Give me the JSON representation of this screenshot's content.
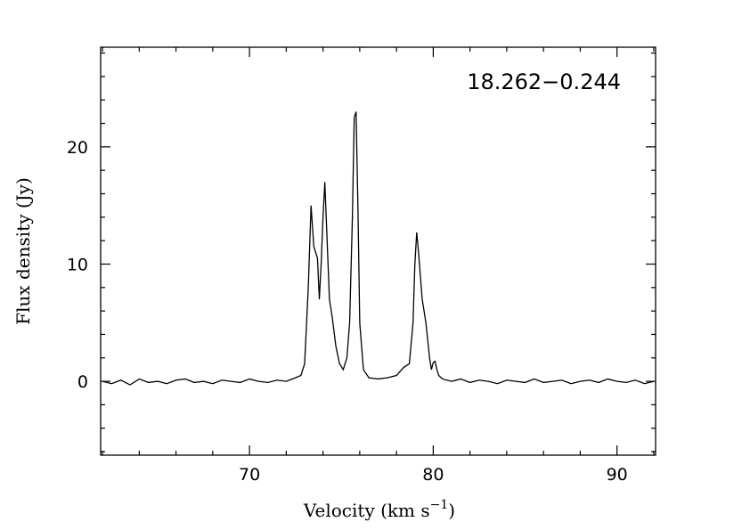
{
  "chart_data": {
    "type": "line",
    "title": "18.262−0.244",
    "xlabel": "Velocity (km s",
    "xlabel_exp": "−1",
    "xlabel_close": ")",
    "ylabel": "Flux density (Jy)",
    "xlim": [
      61.9,
      92.1
    ],
    "ylim": [
      -6.3,
      28.5
    ],
    "x_ticks": [
      70,
      80,
      90
    ],
    "x_tick_labels": [
      "70",
      "80",
      "90"
    ],
    "y_ticks": [
      0,
      10,
      20
    ],
    "y_tick_labels": [
      "0",
      "10",
      "20"
    ],
    "x_minor_step": 2,
    "y_minor_step": 2,
    "colors": {
      "line": "#000000",
      "frame": "#000000",
      "background": "#ffffff"
    },
    "series": [
      {
        "x": [
          62.0,
          62.5,
          63.0,
          63.5,
          64.0,
          64.5,
          65.0,
          65.5,
          66.0,
          66.5,
          67.0,
          67.5,
          68.0,
          68.5,
          69.0,
          69.5,
          70.0,
          70.5,
          71.0,
          71.5,
          72.0,
          72.5,
          72.8,
          73.0,
          73.2,
          73.35,
          73.5,
          73.6,
          73.7,
          73.8,
          73.9,
          74.0,
          74.1,
          74.2,
          74.35,
          74.5,
          74.7,
          74.9,
          75.1,
          75.3,
          75.45,
          75.6,
          75.7,
          75.8,
          75.9,
          76.0,
          76.2,
          76.5,
          77.0,
          77.5,
          78.0,
          78.4,
          78.7,
          78.9,
          79.0,
          79.1,
          79.2,
          79.4,
          79.6,
          79.8,
          79.9,
          80.0,
          80.1,
          80.2,
          80.3,
          80.5,
          81.0,
          81.5,
          82.0,
          82.5,
          83.0,
          83.5,
          84.0,
          84.5,
          85.0,
          85.5,
          86.0,
          86.5,
          87.0,
          87.5,
          88.0,
          88.5,
          89.0,
          89.5,
          90.0,
          90.5,
          91.0,
          91.5,
          92.0
        ],
        "y": [
          0.0,
          -0.2,
          0.1,
          -0.3,
          0.2,
          -0.1,
          0.0,
          -0.2,
          0.1,
          0.2,
          -0.1,
          0.0,
          -0.2,
          0.1,
          0.0,
          -0.1,
          0.2,
          0.0,
          -0.1,
          0.1,
          0.0,
          0.3,
          0.5,
          1.5,
          8.0,
          15.0,
          11.5,
          11.0,
          10.5,
          7.0,
          10.0,
          14.0,
          17.0,
          13.0,
          7.0,
          5.5,
          3.0,
          1.5,
          1.0,
          2.0,
          5.0,
          14.0,
          22.5,
          23.0,
          15.0,
          5.0,
          1.0,
          0.3,
          0.2,
          0.3,
          0.5,
          1.2,
          1.5,
          5.0,
          10.0,
          12.7,
          11.0,
          7.0,
          5.0,
          2.0,
          1.0,
          1.6,
          1.7,
          1.0,
          0.5,
          0.2,
          0.0,
          0.2,
          -0.1,
          0.1,
          0.0,
          -0.2,
          0.1,
          0.0,
          -0.1,
          0.2,
          -0.1,
          0.0,
          0.1,
          -0.2,
          0.0,
          0.1,
          -0.1,
          0.2,
          0.0,
          -0.1,
          0.1,
          -0.2,
          0.0
        ]
      }
    ]
  }
}
